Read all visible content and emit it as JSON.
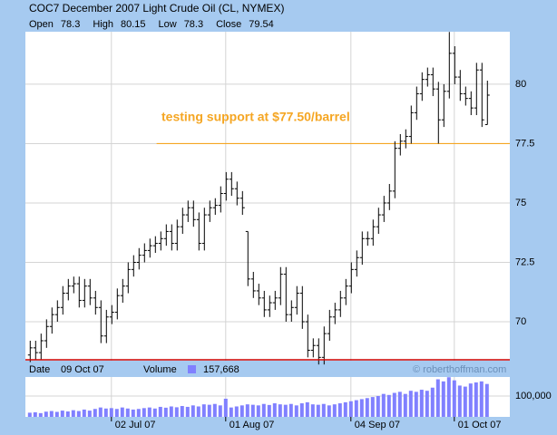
{
  "chart_data": {
    "type": "ohlc",
    "title": "COC7  December 2007 Light Crude Oil (CL, NYMEX)",
    "ohlc_labels": [
      "Open",
      "High",
      "Low",
      "Close"
    ],
    "open": [
      68.6,
      68.9,
      68.7,
      69.2,
      69.8,
      70.3,
      70.6,
      71.2,
      71.5,
      71.6,
      70.9,
      71.5,
      71.0,
      70.6,
      69.4,
      70.2,
      70.4,
      71.1,
      71.5,
      72.2,
      72.5,
      72.8,
      73.0,
      73.2,
      73.3,
      73.5,
      73.8,
      73.3,
      74.0,
      74.5,
      74.8,
      74.3,
      73.3,
      74.5,
      74.8,
      74.9,
      75.4,
      76.0,
      75.6,
      75.2,
      73.8,
      71.8,
      71.3,
      71.0,
      70.5,
      70.8,
      71.0,
      72.0,
      70.3,
      70.6,
      71.2,
      70.0,
      68.8,
      69.0,
      68.5,
      69.5,
      70.2,
      70.5,
      71.0,
      71.5,
      72.2,
      72.7,
      73.5,
      73.5,
      74.0,
      74.5,
      75.0,
      75.5,
      77.3,
      77.6,
      77.8,
      78.8,
      79.6,
      80.2,
      80.4,
      79.8,
      78.5,
      79.7,
      81.3,
      80.3,
      79.6,
      79.4,
      79.0,
      80.6,
      78.3
    ],
    "high": [
      69.2,
      69.2,
      69.5,
      70.1,
      70.6,
      70.9,
      71.5,
      71.8,
      71.9,
      71.9,
      71.8,
      71.8,
      71.3,
      70.9,
      70.5,
      70.7,
      71.4,
      71.8,
      72.5,
      72.8,
      73.1,
      73.3,
      73.5,
      73.6,
      73.8,
      74.1,
      74.1,
      74.3,
      74.8,
      75.1,
      75.1,
      74.6,
      74.8,
      75.1,
      75.2,
      75.7,
      76.3,
      76.3,
      75.9,
      75.5,
      73.8,
      72.1,
      71.6,
      71.3,
      71.1,
      71.3,
      72.3,
      72.3,
      70.9,
      71.5,
      71.5,
      70.3,
      69.3,
      69.3,
      69.8,
      70.5,
      70.8,
      71.3,
      71.8,
      72.5,
      73.0,
      73.8,
      73.8,
      74.3,
      74.8,
      75.3,
      75.8,
      77.6,
      77.9,
      78.1,
      79.1,
      79.9,
      80.5,
      80.7,
      80.7,
      80.1,
      80.0,
      82.2,
      81.6,
      80.6,
      79.9,
      79.7,
      80.9,
      80.9,
      80.15
    ],
    "low": [
      68.3,
      68.4,
      68.4,
      68.9,
      69.5,
      70.0,
      70.3,
      70.9,
      71.2,
      70.6,
      70.6,
      70.7,
      70.3,
      69.1,
      69.1,
      69.9,
      70.1,
      70.8,
      71.2,
      71.9,
      72.2,
      72.5,
      72.7,
      72.9,
      73.0,
      73.2,
      73.0,
      73.0,
      73.7,
      74.2,
      74.0,
      73.0,
      73.0,
      74.2,
      74.5,
      74.6,
      75.1,
      75.3,
      74.9,
      74.5,
      71.5,
      71.0,
      70.7,
      70.2,
      70.2,
      70.5,
      70.7,
      70.0,
      70.0,
      70.3,
      69.7,
      68.5,
      68.5,
      68.2,
      68.2,
      69.2,
      69.9,
      70.2,
      70.7,
      71.2,
      71.9,
      72.4,
      73.2,
      73.2,
      73.7,
      74.2,
      74.7,
      75.2,
      77.0,
      77.3,
      77.5,
      78.5,
      79.3,
      79.9,
      79.5,
      77.5,
      78.2,
      79.4,
      80.0,
      79.3,
      79.1,
      78.7,
      78.7,
      78.2,
      78.3
    ],
    "close": [
      68.9,
      68.7,
      69.2,
      69.8,
      70.3,
      70.6,
      71.2,
      71.5,
      71.6,
      70.9,
      71.5,
      71.0,
      70.6,
      69.4,
      70.2,
      70.4,
      71.1,
      71.5,
      72.2,
      72.5,
      72.8,
      73.0,
      73.2,
      73.3,
      73.5,
      73.8,
      73.3,
      74.0,
      74.5,
      74.8,
      74.3,
      73.3,
      74.5,
      74.8,
      74.9,
      75.4,
      76.0,
      75.6,
      75.2,
      74.8,
      71.8,
      71.3,
      71.0,
      70.5,
      70.8,
      71.0,
      72.0,
      70.3,
      70.6,
      71.2,
      70.0,
      68.8,
      69.0,
      68.5,
      69.5,
      70.2,
      70.5,
      71.0,
      71.5,
      72.2,
      72.7,
      73.5,
      73.5,
      74.0,
      74.5,
      75.0,
      75.5,
      77.3,
      77.6,
      77.8,
      78.8,
      79.6,
      80.2,
      80.4,
      79.8,
      78.5,
      79.7,
      81.3,
      80.3,
      79.6,
      79.4,
      79.0,
      80.6,
      78.5,
      79.54
    ],
    "volume": [
      20000,
      22000,
      18000,
      25000,
      28000,
      24000,
      30000,
      26000,
      32000,
      28000,
      35000,
      30000,
      38000,
      45000,
      40000,
      42000,
      38000,
      45000,
      40000,
      35000,
      38000,
      42000,
      45000,
      40000,
      48000,
      44000,
      50000,
      46000,
      52000,
      48000,
      55000,
      50000,
      60000,
      58000,
      62000,
      55000,
      87000,
      45000,
      50000,
      55000,
      60000,
      58000,
      55000,
      62000,
      57000,
      65000,
      60000,
      58000,
      62000,
      55000,
      65000,
      70000,
      60000,
      58000,
      62000,
      55000,
      60000,
      65000,
      70000,
      75000,
      80000,
      85000,
      90000,
      95000,
      100000,
      110000,
      105000,
      115000,
      120000,
      110000,
      125000,
      120000,
      130000,
      125000,
      140000,
      180000,
      170000,
      190000,
      175000,
      150000,
      145000,
      160000,
      165000,
      170000,
      157668
    ],
    "color": "#000000",
    "volume_color": "#8080ff",
    "ylim": [
      68.36,
      82.21
    ],
    "yticks": [
      70,
      72.5,
      75,
      77.5,
      80
    ],
    "volume_ylim": [
      0,
      191000
    ],
    "volume_yticks": [
      {
        "value": 100000,
        "label": "100,000"
      }
    ],
    "xlim": [
      -0.8,
      88.2
    ],
    "xticks": [
      {
        "value": 15,
        "label": "02 Jul 07"
      },
      {
        "value": 36,
        "label": "01 Aug 07"
      },
      {
        "value": 59,
        "label": "04 Sep 07"
      },
      {
        "value": 78,
        "label": "01 Oct 07"
      }
    ],
    "grid": true,
    "annotation": {
      "text": "testing support at $77.50/barrel",
      "value": 77.5,
      "x_start": 23.3,
      "color": "#f5a623"
    },
    "status": {
      "date_label": "Date",
      "date": "09 Oct 07",
      "volume_label": "Volume",
      "volume": "157,668"
    },
    "watermark": "© roberthoffman.com"
  }
}
